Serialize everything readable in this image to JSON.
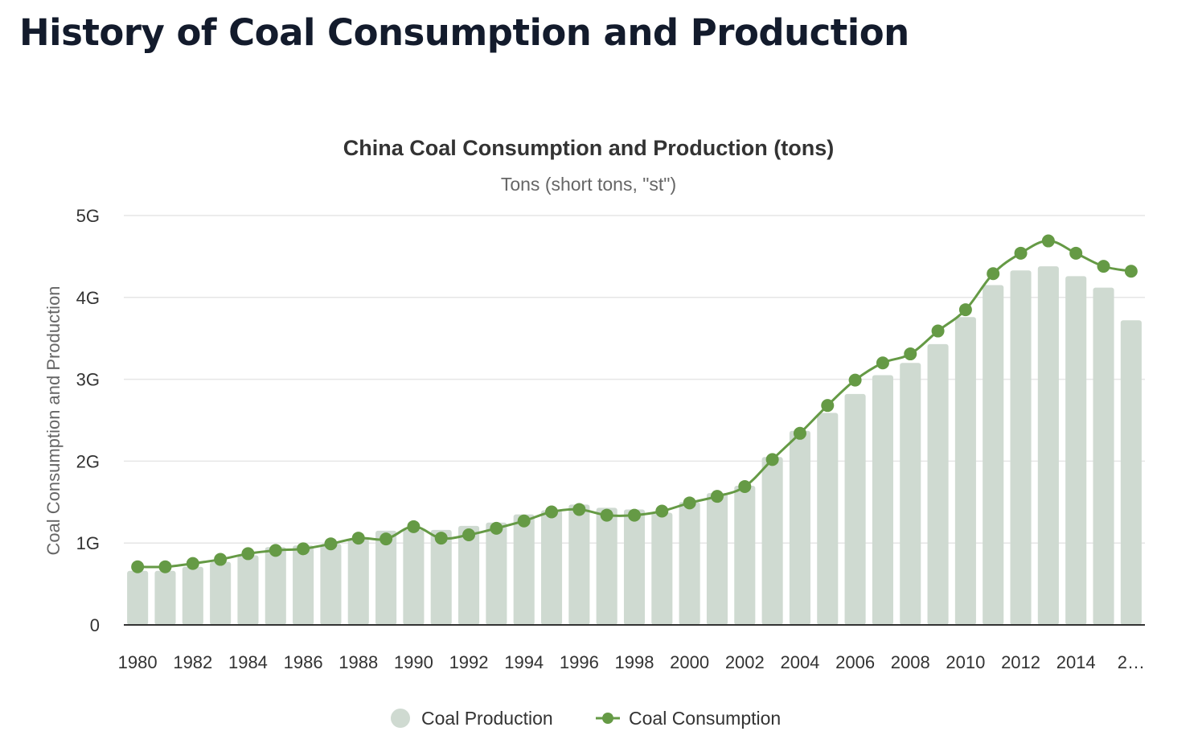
{
  "page": {
    "title": "History of Coal Consumption and Production"
  },
  "colors": {
    "production_bar": "#cfdad1",
    "consumption_line": "#659a45",
    "grid": "#e6e6e6",
    "axis": "#333333"
  },
  "chart_data": {
    "type": "bar",
    "title": "China Coal Consumption and Production (tons)",
    "subtitle": "Tons (short tons, \"st\")",
    "xlabel": "",
    "ylabel": "Coal Consumption and Production",
    "ylim": [
      0,
      5000000000
    ],
    "yticks": [
      0,
      1000000000,
      2000000000,
      3000000000,
      4000000000,
      5000000000
    ],
    "ytick_labels": [
      "0",
      "1G",
      "2G",
      "3G",
      "4G",
      "5G"
    ],
    "grid": true,
    "legend_position": "bottom-center",
    "categories": [
      "1980",
      "1981",
      "1982",
      "1983",
      "1984",
      "1985",
      "1986",
      "1987",
      "1988",
      "1989",
      "1990",
      "1991",
      "1992",
      "1993",
      "1994",
      "1995",
      "1996",
      "1997",
      "1998",
      "1999",
      "2000",
      "2001",
      "2002",
      "2003",
      "2004",
      "2005",
      "2006",
      "2007",
      "2008",
      "2009",
      "2010",
      "2011",
      "2012",
      "2013",
      "2014",
      "2015",
      "2016"
    ],
    "xtick_labels": [
      "1980",
      "1982",
      "1984",
      "1986",
      "1988",
      "1990",
      "1992",
      "1994",
      "1996",
      "1998",
      "2000",
      "2002",
      "2004",
      "2006",
      "2008",
      "2010",
      "2012",
      "2014",
      "2…"
    ],
    "series": [
      {
        "name": "Coal Production",
        "type": "bar",
        "values": [
          660000000,
          660000000,
          710000000,
          770000000,
          850000000,
          950000000,
          970000000,
          990000000,
          1060000000,
          1150000000,
          1160000000,
          1160000000,
          1210000000,
          1250000000,
          1350000000,
          1400000000,
          1470000000,
          1430000000,
          1410000000,
          1370000000,
          1500000000,
          1610000000,
          1700000000,
          2050000000,
          2370000000,
          2590000000,
          2820000000,
          3050000000,
          3200000000,
          3430000000,
          3760000000,
          4150000000,
          4330000000,
          4380000000,
          4260000000,
          4120000000,
          3720000000
        ]
      },
      {
        "name": "Coal Consumption",
        "type": "line",
        "values": [
          710000000,
          710000000,
          750000000,
          800000000,
          870000000,
          910000000,
          930000000,
          990000000,
          1060000000,
          1050000000,
          1200000000,
          1060000000,
          1100000000,
          1180000000,
          1270000000,
          1380000000,
          1410000000,
          1340000000,
          1340000000,
          1390000000,
          1490000000,
          1570000000,
          1690000000,
          2020000000,
          2340000000,
          2680000000,
          2990000000,
          3200000000,
          3310000000,
          3590000000,
          3850000000,
          4290000000,
          4540000000,
          4690000000,
          4540000000,
          4380000000,
          4320000000
        ]
      }
    ]
  }
}
